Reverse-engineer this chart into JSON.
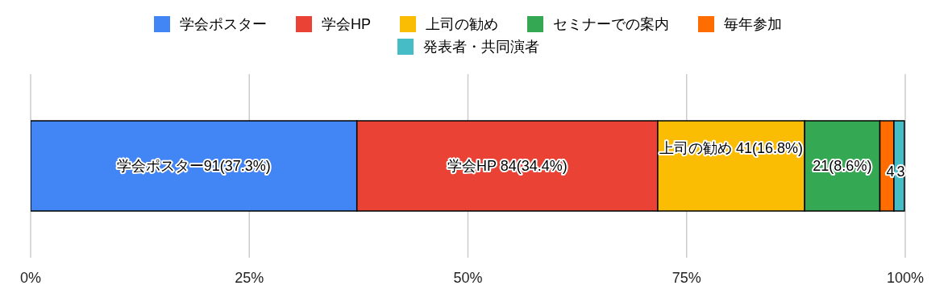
{
  "chart_data": {
    "type": "bar",
    "orientation": "horizontal",
    "stacked": true,
    "categories": [
      null
    ],
    "series": [
      {
        "name": "学会ポスター",
        "color": "#4285f4",
        "values": [
          37.3
        ],
        "value_labels": [
          "学会ポスター91(37.3%)"
        ]
      },
      {
        "name": "学会HP",
        "color": "#ea4335",
        "values": [
          34.4
        ],
        "value_labels": [
          "学会HP 84(34.4%)"
        ]
      },
      {
        "name": "上司の勧め",
        "color": "#fbbc04",
        "values": [
          16.8
        ],
        "value_labels": [
          "上司の勧め 41(16.8%)"
        ]
      },
      {
        "name": "セミナーでの案内",
        "color": "#34a853",
        "values": [
          8.6
        ],
        "value_labels": [
          "21(8.6%)"
        ]
      },
      {
        "name": "毎年参加",
        "color": "#ff6d01",
        "values": [
          1.6
        ]
      },
      {
        "name": "発表者・共同演者",
        "color": "#46bdc6",
        "values": [
          1.2
        ]
      }
    ],
    "annotations": [
      {
        "text": "4",
        "x": 98.3
      },
      {
        "text": "3",
        "x": 99.5
      }
    ],
    "xlim": [
      0,
      100
    ],
    "xticks": [
      {
        "value": 0,
        "label": "0%"
      },
      {
        "value": 25,
        "label": "25%"
      },
      {
        "value": 50,
        "label": "50%"
      },
      {
        "value": 75,
        "label": "75%"
      },
      {
        "value": 100,
        "label": "100%"
      }
    ],
    "grid": "x",
    "legend": "top"
  }
}
